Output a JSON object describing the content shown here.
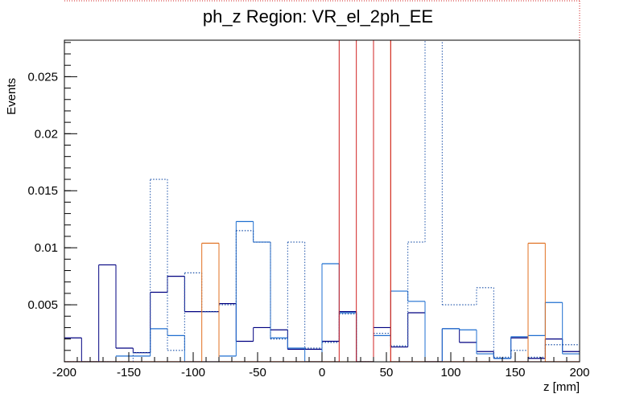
{
  "chart_data": {
    "type": "histogram",
    "title": "ph_z Region: VR_el_2ph_EE",
    "x_label": "z [mm]",
    "y_label": "Events",
    "bins": [
      -200,
      -186.67,
      -173.33,
      -160,
      -146.67,
      -133.33,
      -120,
      -106.67,
      -93.33,
      -80,
      -66.67,
      -53.33,
      -40,
      -26.67,
      -13.33,
      0,
      13.33,
      26.67,
      40,
      53.33,
      66.67,
      80,
      93.33,
      106.67,
      120,
      133.33,
      146.67,
      160,
      173.33,
      186.67,
      200
    ],
    "xlim": [
      -200,
      200
    ],
    "xticks": [
      -200,
      -150,
      -100,
      -50,
      0,
      50,
      100,
      150,
      200
    ],
    "ylim": [
      0,
      0.0282
    ],
    "yticks": [
      0.005,
      0.01,
      0.015,
      0.02,
      0.025
    ],
    "series": [
      {
        "color": "#000080",
        "style": "solid",
        "values": [
          0.0021,
          0,
          0.0085,
          0.0012,
          0.0008,
          0.0061,
          0.0075,
          0.0044,
          0.0044,
          0.0051,
          0.0018,
          0.003,
          0.0028,
          0.0011,
          0.0011,
          0.0018,
          0.0044,
          0,
          0.003,
          0.0013,
          0.0043,
          0,
          0.0029,
          0.0017,
          0.0009,
          0.0003,
          0.0021,
          0.0003,
          0.002,
          0.0009
        ]
      },
      {
        "color": "#1f6fd0",
        "style": "solid",
        "values": [
          0,
          0,
          0,
          0.0005,
          0.0005,
          0.0029,
          0.0023,
          0,
          0,
          0.0005,
          0.0123,
          0.0105,
          0.0021,
          0.0012,
          0,
          0.0086,
          0.0043,
          0,
          0.0023,
          0.0062,
          0.0053,
          0,
          0.0029,
          0.0028,
          0.0007,
          0.0003,
          0.0022,
          0.0023,
          0.0052,
          0.0007
        ]
      },
      {
        "color": "#1a50a8",
        "style": "dotted",
        "values": [
          0,
          0,
          0,
          0,
          0.0008,
          0.016,
          0.001,
          0.0078,
          0.0044,
          0.005,
          0.0115,
          0.0105,
          0.002,
          0.0105,
          0.0012,
          0.0017,
          0.0042,
          0,
          0.0025,
          0.0014,
          0.0105,
          0.03,
          0.005,
          0.005,
          0.0065,
          0.0004,
          0.001,
          0.0004,
          0.0015,
          0.0015
        ]
      },
      {
        "color": "#e07020",
        "style": "solid",
        "values": [
          0,
          0,
          0,
          0,
          0,
          0,
          0,
          0,
          0.0104,
          0,
          0,
          0,
          0,
          0,
          0,
          0,
          0,
          0,
          0.03,
          0,
          0,
          0,
          0,
          0,
          0,
          0,
          0,
          0.0104,
          0,
          0
        ]
      },
      {
        "color": "#d02020",
        "style": "solid",
        "values": [
          0,
          0,
          0,
          0,
          0,
          0,
          0,
          0,
          0,
          0,
          0,
          0,
          0,
          0,
          0,
          0,
          0.03,
          0,
          0.03,
          0,
          0,
          0,
          0,
          0,
          0,
          0,
          0,
          0,
          0,
          0
        ]
      }
    ]
  }
}
